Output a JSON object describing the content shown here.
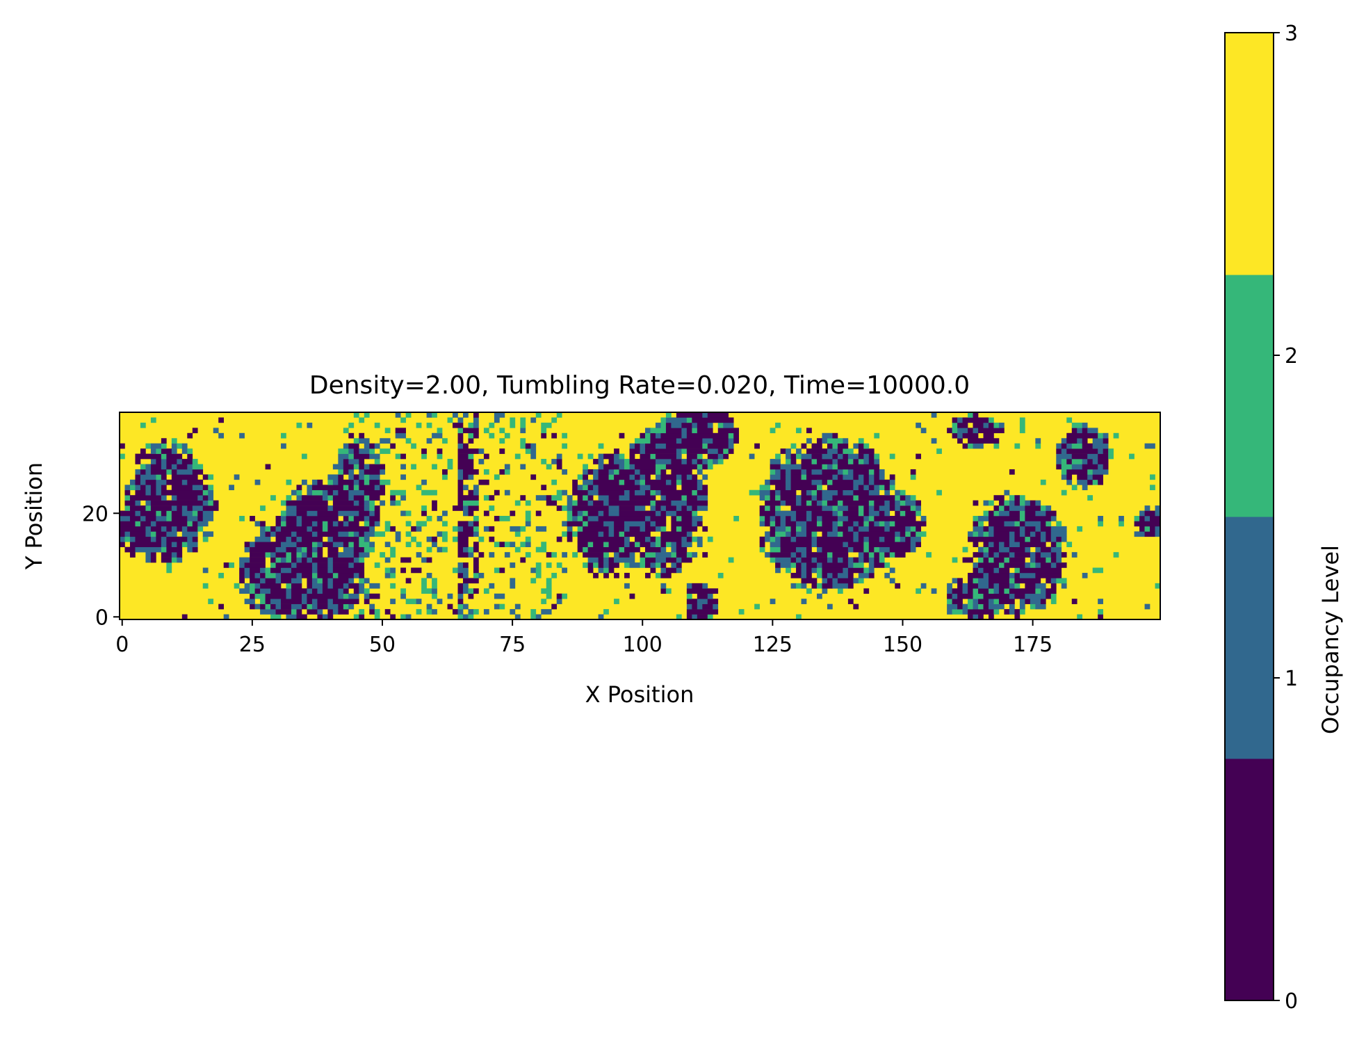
{
  "chart_data": {
    "type": "heatmap",
    "title": "Density=2.00, Tumbling Rate=0.020, Time=10000.0",
    "xlabel": "X Position",
    "ylabel": "Y Position",
    "colorbar_label": "Occupancy Level",
    "grid_width": 200,
    "grid_height": 40,
    "x_range": [
      0,
      199
    ],
    "y_range": [
      0,
      39
    ],
    "x_ticks": [
      {
        "value": 0,
        "label": "0"
      },
      {
        "value": 25,
        "label": "25"
      },
      {
        "value": 50,
        "label": "50"
      },
      {
        "value": 75,
        "label": "75"
      },
      {
        "value": 100,
        "label": "100"
      },
      {
        "value": 125,
        "label": "125"
      },
      {
        "value": 150,
        "label": "150"
      },
      {
        "value": 175,
        "label": "175"
      }
    ],
    "y_ticks": [
      {
        "value": 0,
        "label": "0"
      },
      {
        "value": 20,
        "label": "20"
      }
    ],
    "levels": [
      0,
      1,
      2,
      3
    ],
    "colormap": [
      "#440154",
      "#31688e",
      "#35b779",
      "#fde725"
    ],
    "colorbar_range": [
      0,
      3
    ],
    "colorbar_ticks": [
      {
        "value": 0,
        "label": "0"
      },
      {
        "value": 1,
        "label": "1"
      },
      {
        "value": 2,
        "label": "2"
      },
      {
        "value": 3,
        "label": "3"
      }
    ],
    "clusters": [
      {
        "cx": 9,
        "cy": 22,
        "rx": 8,
        "ry": 11
      },
      {
        "cx": 3,
        "cy": 17,
        "rx": 4,
        "ry": 5
      },
      {
        "cx": 38,
        "cy": 13,
        "rx": 9,
        "ry": 13
      },
      {
        "cx": 30,
        "cy": 9,
        "rx": 7,
        "ry": 9
      },
      {
        "cx": 45,
        "cy": 24,
        "rx": 5,
        "ry": 10
      },
      {
        "cx": 94,
        "cy": 20,
        "rx": 8,
        "ry": 11
      },
      {
        "cx": 104,
        "cy": 23,
        "rx": 8,
        "ry": 14
      },
      {
        "cx": 111,
        "cy": 35,
        "rx": 7,
        "ry": 6
      },
      {
        "cx": 111,
        "cy": 3,
        "rx": 3,
        "ry": 4
      },
      {
        "cx": 136,
        "cy": 20,
        "rx": 13,
        "ry": 14
      },
      {
        "cx": 148,
        "cy": 18,
        "rx": 6,
        "ry": 6
      },
      {
        "cx": 130,
        "cy": 24,
        "rx": 5,
        "ry": 6
      },
      {
        "cx": 164,
        "cy": 36,
        "rx": 5,
        "ry": 3
      },
      {
        "cx": 185,
        "cy": 31,
        "rx": 5,
        "ry": 6
      },
      {
        "cx": 172,
        "cy": 12,
        "rx": 9,
        "ry": 11
      },
      {
        "cx": 165,
        "cy": 4,
        "rx": 7,
        "ry": 4
      },
      {
        "cx": 198,
        "cy": 18,
        "rx": 3,
        "ry": 3
      }
    ],
    "vertical_bands": [
      {
        "x_start": 65,
        "x_end": 68,
        "value": 0
      }
    ]
  }
}
